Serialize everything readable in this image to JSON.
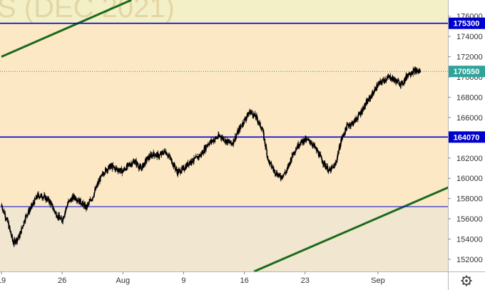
{
  "watermark": "S (DEC 2021)",
  "colors": {
    "band_upper": "#f3f0c8",
    "band_middle": "#fde8c6",
    "band_lower": "#f1e6d0",
    "hline": "#0000cc",
    "trend": "#1b6b1b",
    "candle": "#000000",
    "axis_bg": "#ffffff",
    "label_bg": "#0000cc",
    "last_label_bg": "#2ea39a"
  },
  "chart_data": {
    "type": "line",
    "title": "",
    "xlabel": "",
    "ylabel": "",
    "ylim": [
      150800,
      177600
    ],
    "x_ticks": [
      {
        "label": "19",
        "x": 0
      },
      {
        "label": "26",
        "x": 5
      },
      {
        "label": "Aug",
        "x": 10
      },
      {
        "label": "9",
        "x": 15
      },
      {
        "label": "16",
        "x": 20
      },
      {
        "label": "23",
        "x": 25
      },
      {
        "label": "Sep",
        "x": 31
      }
    ],
    "y_ticks": [
      152000,
      154000,
      156000,
      158000,
      160000,
      162000,
      164000,
      166000,
      168000,
      170000,
      172000,
      174000,
      176000
    ],
    "horizontal_levels": [
      {
        "value": 175300,
        "label": "175300",
        "boxed": true
      },
      {
        "value": 164070,
        "label": "164070",
        "boxed": true
      },
      {
        "value": 157200,
        "label": "",
        "boxed": false
      }
    ],
    "last_price": {
      "value": 170550,
      "label": "170550"
    },
    "trend_lines": [
      {
        "from": [
          0,
          172000
        ],
        "to": [
          10.7,
          177600
        ]
      },
      {
        "from": [
          20.8,
          150800
        ],
        "to": [
          36.8,
          159100
        ]
      }
    ],
    "series": [
      {
        "x": [
          0,
          0.5,
          1,
          1.5,
          2,
          2.5,
          3,
          3.5,
          4,
          4.5,
          5,
          5.5,
          6,
          6.5,
          7,
          7.5,
          8,
          8.5,
          9,
          9.5,
          10,
          10.5,
          11,
          11.5,
          12,
          12.5,
          13,
          13.5,
          14,
          14.5,
          15,
          15.5,
          16,
          16.5,
          17,
          17.5,
          18,
          18.5,
          19,
          19.5,
          20,
          20.5,
          21,
          21.5,
          22,
          22.5,
          23,
          23.5,
          24,
          24.5,
          25,
          25.5,
          26,
          26.5,
          27,
          27.5,
          28,
          28.5,
          29,
          29.5,
          30,
          30.5,
          31,
          31.5,
          32,
          32.5,
          33,
          33.5,
          34,
          34.5
        ],
        "values": [
          157400,
          155800,
          153600,
          154300,
          156200,
          157200,
          158300,
          158200,
          157700,
          156500,
          155800,
          157600,
          158200,
          157700,
          157100,
          158100,
          159600,
          160700,
          161200,
          160900,
          160700,
          161300,
          161700,
          160900,
          161900,
          162400,
          162200,
          162700,
          161800,
          160600,
          160900,
          161600,
          161900,
          162400,
          163400,
          163800,
          164200,
          163700,
          163400,
          164600,
          165700,
          166600,
          166000,
          164800,
          161700,
          160700,
          160100,
          160700,
          162400,
          163400,
          163800,
          163600,
          162700,
          161600,
          160700,
          161300,
          163800,
          165200,
          165500,
          166300,
          167300,
          168200,
          169200,
          169700,
          170000,
          169600,
          169300,
          170300,
          170600,
          170550
        ]
      }
    ]
  }
}
